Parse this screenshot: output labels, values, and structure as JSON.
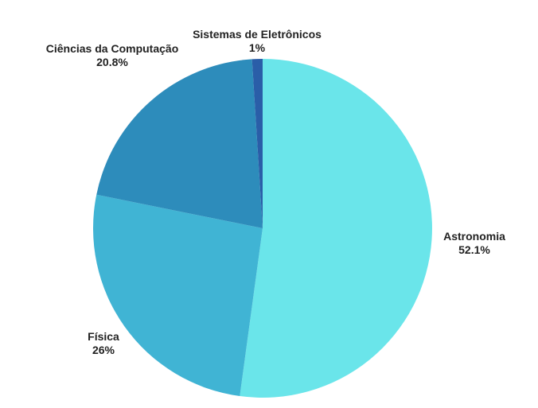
{
  "chart_data": {
    "type": "pie",
    "title": "",
    "slices": [
      {
        "label": "Astronomia",
        "value_label": "52.1%",
        "value": 52.1,
        "color": "#6ae5ea"
      },
      {
        "label": "Física",
        "value_label": "26%",
        "value": 26.0,
        "color": "#40b4d4"
      },
      {
        "label": "Ciências da Computação",
        "value_label": "20.8%",
        "value": 20.8,
        "color": "#2d8cbb"
      },
      {
        "label": "Sistemas de Eletrônicos",
        "value_label": "1%",
        "value": 1.0,
        "color": "#2a5ea8"
      }
    ],
    "start_angle": "12 o'clock",
    "direction": "clockwise",
    "legend": "none"
  }
}
